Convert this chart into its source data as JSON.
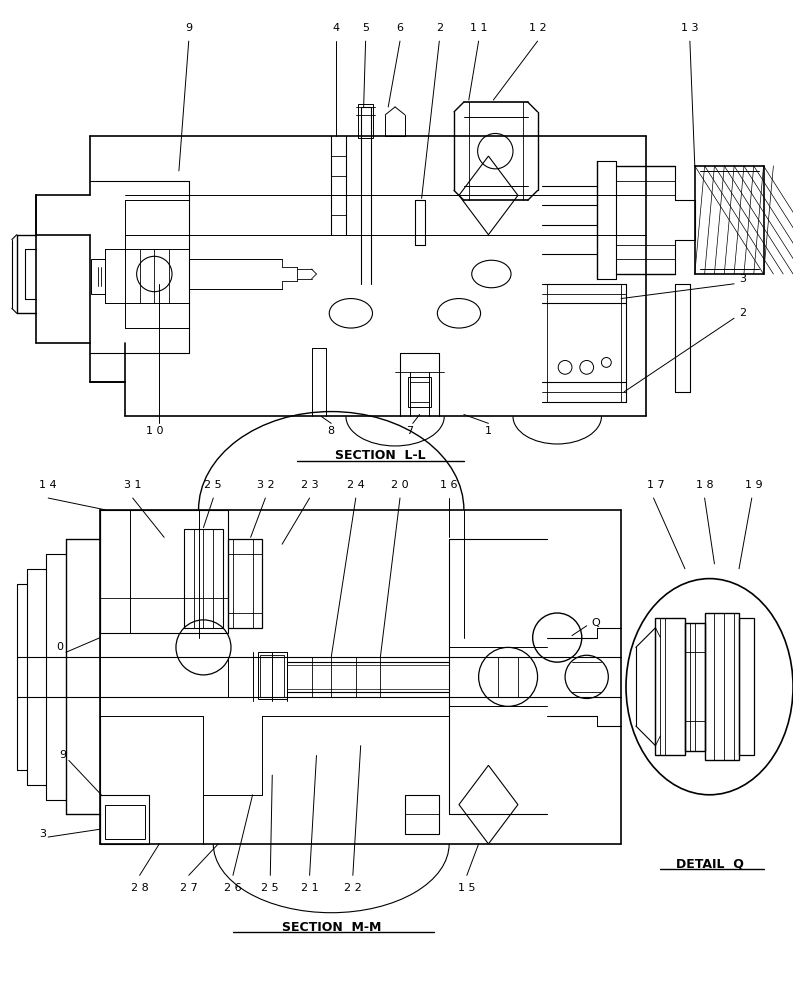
{
  "bg_color": "#ffffff",
  "line_color": "#000000",
  "fig_width": 8.0,
  "fig_height": 10.0,
  "section_ll_label": "SECTION  L-L",
  "section_mm_label": "SECTION  M-M",
  "detail_q_label": "DETAIL  Q"
}
